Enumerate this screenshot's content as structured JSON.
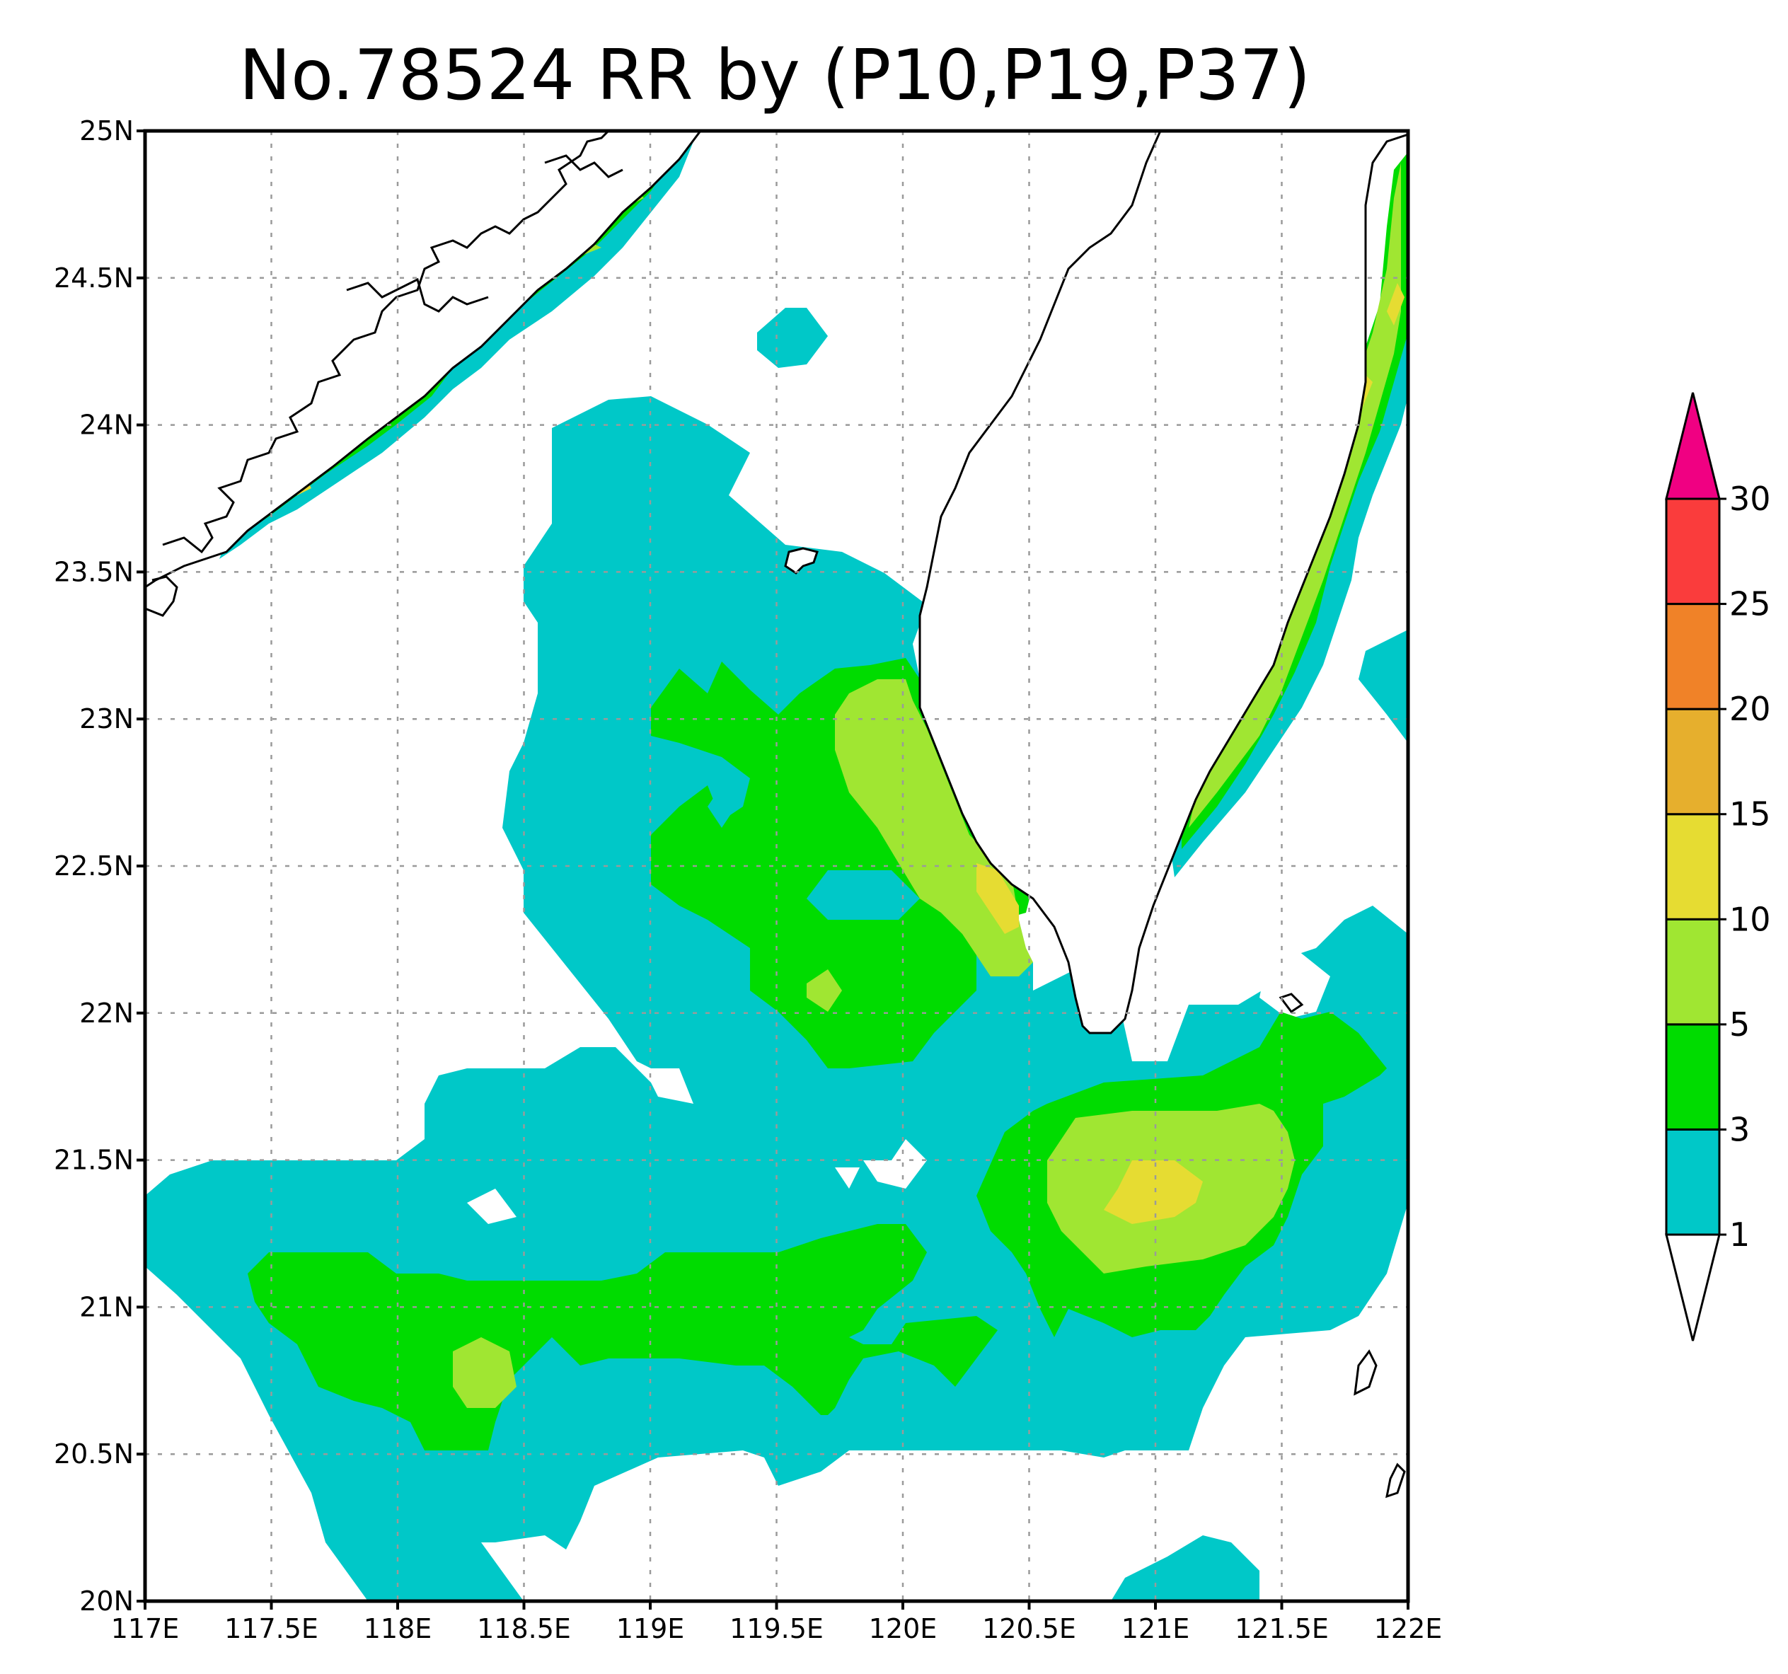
{
  "title": "No.78524 RR by (P10,P19,P37)",
  "map": {
    "lon_range": [
      117,
      122
    ],
    "lat_range": [
      20,
      25
    ],
    "lon_ticks": [
      "117E",
      "117.5E",
      "118E",
      "118.5E",
      "119E",
      "119.5E",
      "120E",
      "120.5E",
      "121E",
      "121.5E",
      "122E"
    ],
    "lat_ticks": [
      "20N",
      "20.5N",
      "21N",
      "21.5N",
      "22N",
      "22.5N",
      "23N",
      "23.5N",
      "24N",
      "24.5N",
      "25N"
    ],
    "gridlines": "dotted",
    "features": [
      "coastline-mainland-china",
      "taiwan-island",
      "penghu-islands",
      "small-islands-southeast"
    ]
  },
  "colorbar": {
    "placement": "right",
    "labels": [
      "1",
      "3",
      "5",
      "10",
      "15",
      "20",
      "25",
      "30"
    ],
    "colors": [
      "#00c8c8",
      "#00dc00",
      "#a0e632",
      "#e6dc32",
      "#e6af2d",
      "#f08228",
      "#fa3c3c",
      "#f00082"
    ],
    "under_color": "#ffffff",
    "over_color": "#f00082"
  },
  "colors": {
    "class_1_3": "#00c8c8",
    "class_3_5": "#00dc00",
    "class_5_10": "#a0e632",
    "class_10_15": "#e6dc32"
  }
}
